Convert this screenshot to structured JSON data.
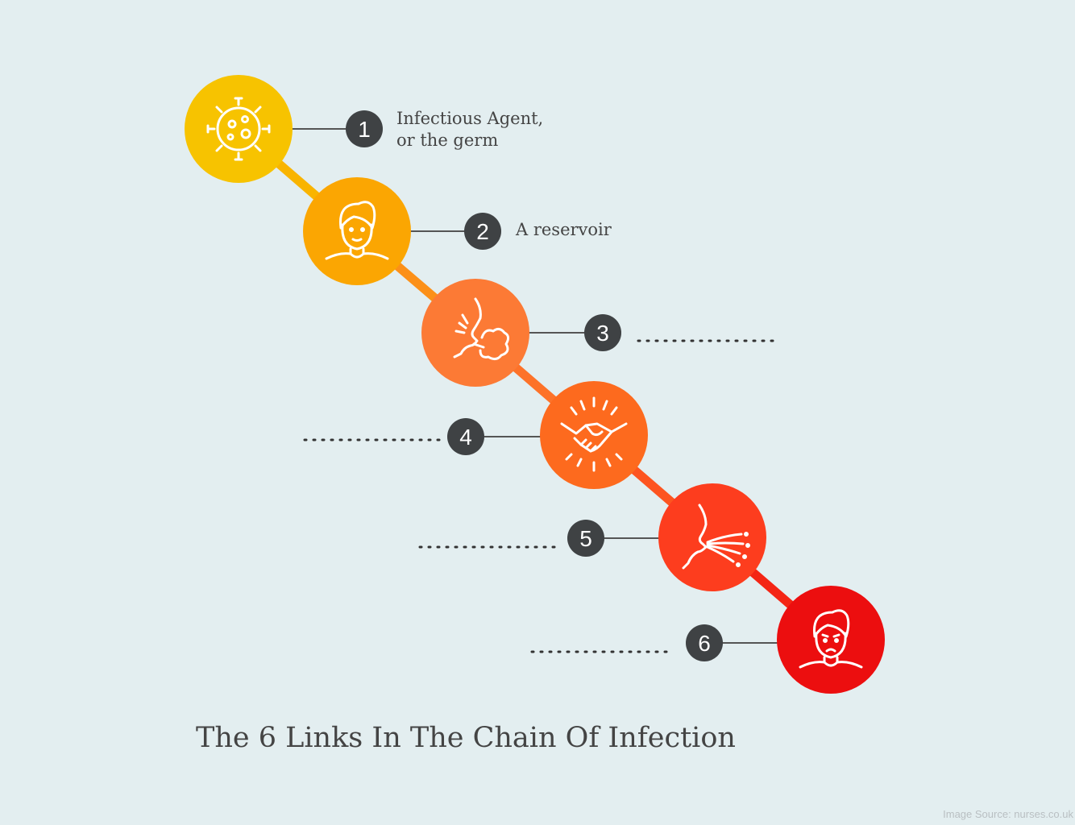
{
  "title": "The 6 Links In The Chain Of Infection",
  "source": "Image Source: nurses.co.uk",
  "colors": {
    "background": "#e3eef0",
    "badge": "#3f4244",
    "connector": "#555555",
    "dots": "#333333"
  },
  "steps": [
    {
      "number": "1",
      "label_lines": [
        "Infectious Agent,",
        "or the germ"
      ],
      "icon": "germ-icon",
      "color": "#f7c300"
    },
    {
      "number": "2",
      "label_lines": [
        "A reservoir"
      ],
      "icon": "person-icon",
      "color": "#fba602"
    },
    {
      "number": "3",
      "label_lines": [],
      "icon": "cough-icon",
      "color": "#fc7a35"
    },
    {
      "number": "4",
      "label_lines": [],
      "icon": "handshake-icon",
      "color": "#fd6a1e"
    },
    {
      "number": "5",
      "label_lines": [],
      "icon": "breath-icon",
      "color": "#fd3d1e"
    },
    {
      "number": "6",
      "label_lines": [],
      "icon": "sick-person-icon",
      "color": "#ec0e0f"
    }
  ]
}
